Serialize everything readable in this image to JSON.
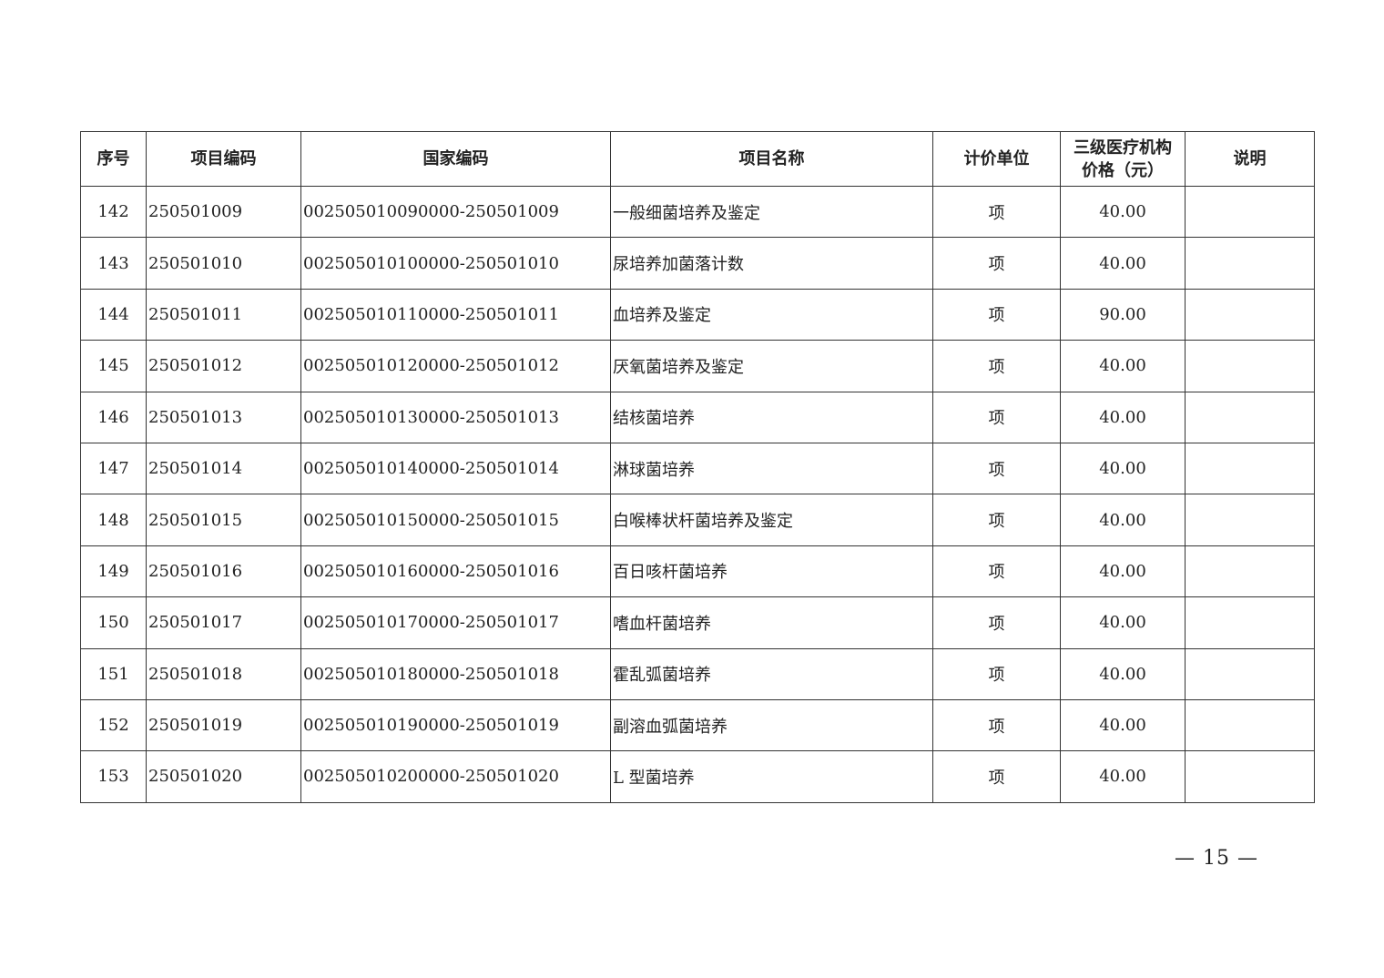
{
  "table": {
    "headers": [
      "序号",
      "项目编码",
      "国家编码",
      "项目名称",
      "计价单位",
      "三级医疗机构价格（元）",
      "说明"
    ],
    "header_price_line1": "三级医疗机构",
    "header_price_line2": "价格（元）",
    "rows": [
      {
        "no": "142",
        "code": "250501009",
        "national_code": "002505010090000-250501009",
        "name": "一般细菌培养及鉴定",
        "unit": "项",
        "price": "40.00",
        "note": ""
      },
      {
        "no": "143",
        "code": "250501010",
        "national_code": "002505010100000-250501010",
        "name": "尿培养加菌落计数",
        "unit": "项",
        "price": "40.00",
        "note": ""
      },
      {
        "no": "144",
        "code": "250501011",
        "national_code": "002505010110000-250501011",
        "name": "血培养及鉴定",
        "unit": "项",
        "price": "90.00",
        "note": ""
      },
      {
        "no": "145",
        "code": "250501012",
        "national_code": "002505010120000-250501012",
        "name": "厌氧菌培养及鉴定",
        "unit": "项",
        "price": "40.00",
        "note": ""
      },
      {
        "no": "146",
        "code": "250501013",
        "national_code": "002505010130000-250501013",
        "name": "结核菌培养",
        "unit": "项",
        "price": "40.00",
        "note": ""
      },
      {
        "no": "147",
        "code": "250501014",
        "national_code": "002505010140000-250501014",
        "name": "淋球菌培养",
        "unit": "项",
        "price": "40.00",
        "note": ""
      },
      {
        "no": "148",
        "code": "250501015",
        "national_code": "002505010150000-250501015",
        "name": "白喉棒状杆菌培养及鉴定",
        "unit": "项",
        "price": "40.00",
        "note": ""
      },
      {
        "no": "149",
        "code": "250501016",
        "national_code": "002505010160000-250501016",
        "name": "百日咳杆菌培养",
        "unit": "项",
        "price": "40.00",
        "note": ""
      },
      {
        "no": "150",
        "code": "250501017",
        "national_code": "002505010170000-250501017",
        "name": "嗜血杆菌培养",
        "unit": "项",
        "price": "40.00",
        "note": ""
      },
      {
        "no": "151",
        "code": "250501018",
        "national_code": "002505010180000-250501018",
        "name": "霍乱弧菌培养",
        "unit": "项",
        "price": "40.00",
        "note": ""
      },
      {
        "no": "152",
        "code": "250501019",
        "national_code": "002505010190000-250501019",
        "name": "副溶血弧菌培养",
        "unit": "项",
        "price": "40.00",
        "note": ""
      },
      {
        "no": "153",
        "code": "250501020",
        "national_code": "002505010200000-250501020",
        "name": "L 型菌培养",
        "unit": "项",
        "price": "40.00",
        "note": ""
      }
    ]
  },
  "page_number": "— 15 —"
}
